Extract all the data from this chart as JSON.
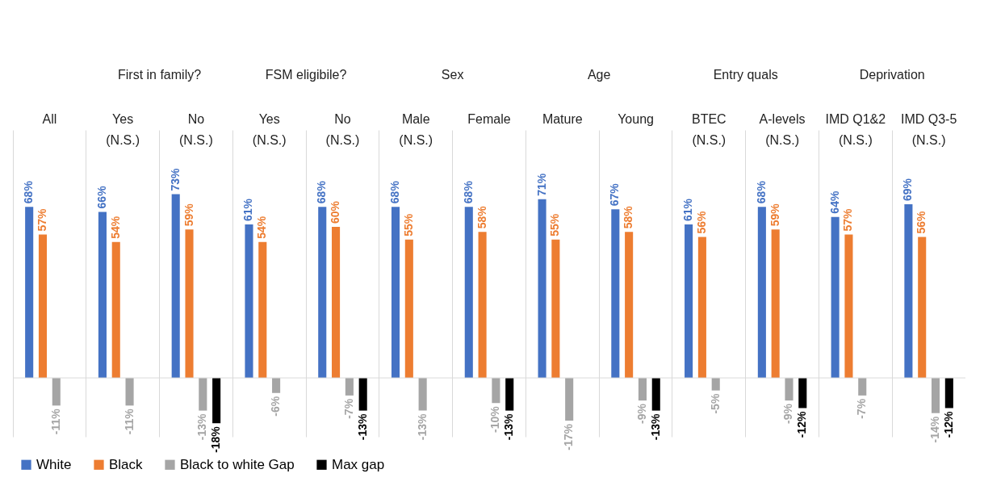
{
  "chart_data": {
    "type": "bar",
    "categories": [
      "All",
      "Yes (N.S.)",
      "No (N.S.)",
      "Yes (N.S.)",
      "No (N.S.)",
      "Male (N.S.)",
      "Female",
      "Mature",
      "Young",
      "BTEC (N.S.)",
      "A-levels (N.S.)",
      "IMD Q1&2 (N.S.)",
      "IMD Q3-5 (N.S.)"
    ],
    "series": [
      {
        "name": "White",
        "color": "#4472c4",
        "values": [
          68,
          66,
          73,
          61,
          68,
          68,
          68,
          71,
          67,
          61,
          68,
          64,
          69
        ],
        "value_labels": [
          "68%",
          "66%",
          "73%",
          "61%",
          "68%",
          "68%",
          "68%",
          "71%",
          "67%",
          "61%",
          "68%",
          "64%",
          "69%"
        ]
      },
      {
        "name": "Black",
        "color": "#ed7d31",
        "values": [
          57,
          54,
          59,
          54,
          60,
          55,
          58,
          55,
          58,
          56,
          59,
          57,
          56
        ],
        "value_labels": [
          "57%",
          "54%",
          "59%",
          "54%",
          "60%",
          "55%",
          "58%",
          "55%",
          "58%",
          "56%",
          "59%",
          "57%",
          "56%"
        ]
      },
      {
        "name": "Black to white Gap",
        "color": "#a5a5a5",
        "values": [
          -11,
          -11,
          -13,
          -6,
          -7,
          -13,
          -10,
          -17,
          -9,
          -5,
          -9,
          -7,
          -14
        ],
        "value_labels": [
          "-11%",
          "-11%",
          "-13%",
          "-6%",
          "-7%",
          "-13%",
          "-10%",
          "-17%",
          "-9%",
          "-5%",
          "-9%",
          "-7%",
          "-14%"
        ]
      },
      {
        "name": "Max gap",
        "color": "#000000",
        "values": [
          null,
          null,
          -18,
          null,
          -13,
          null,
          -13,
          null,
          -13,
          null,
          -12,
          null,
          -12
        ],
        "value_labels": [
          null,
          null,
          "-18%",
          null,
          "-13%",
          null,
          "-13%",
          null,
          "-13%",
          null,
          "-12%",
          null,
          "-12%"
        ]
      }
    ],
    "annotations": [
      "First in family?",
      "FSM eligibile?",
      "Sex",
      "Age",
      "Entry quals",
      "Deprivation"
    ],
    "grid": "x",
    "legend": "bottom"
  }
}
